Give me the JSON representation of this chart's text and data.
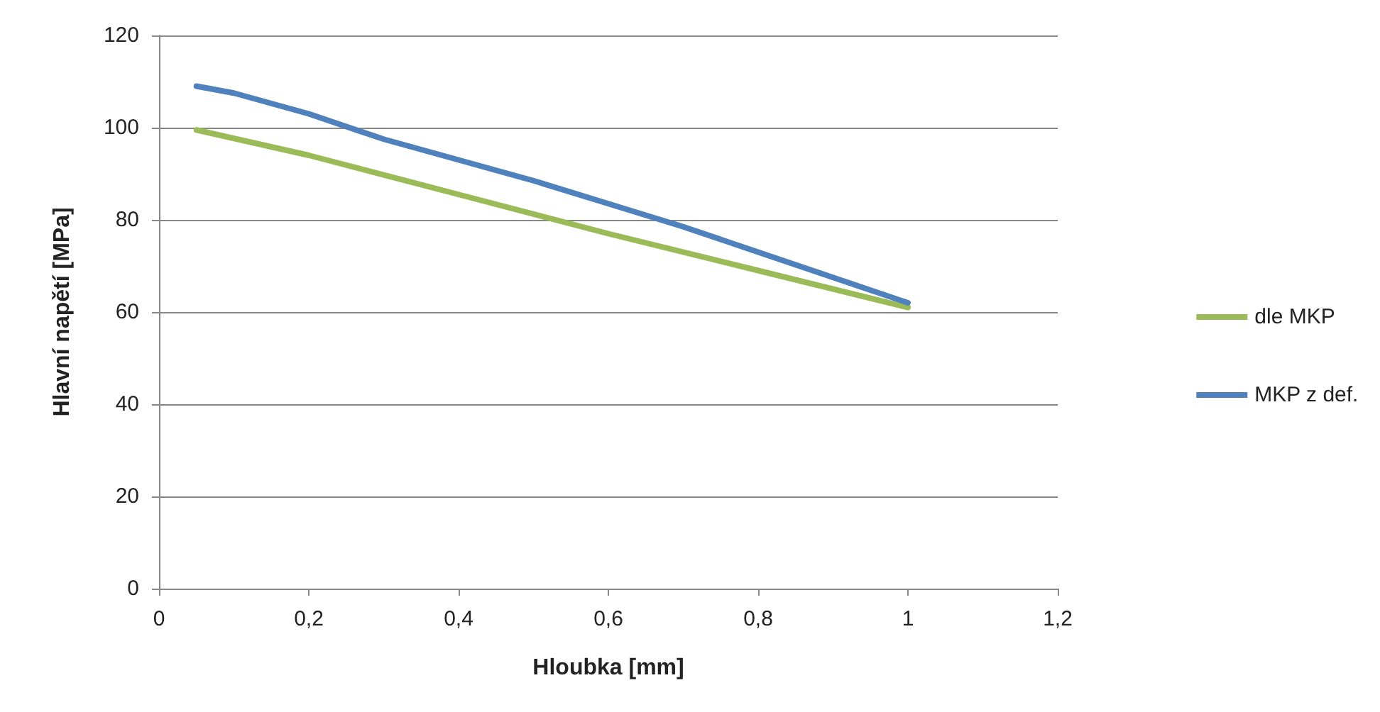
{
  "chart_data": {
    "type": "line",
    "xlabel": "Hloubka [mm]",
    "ylabel": "Hlavní napětí [MPa]",
    "xlim": [
      0,
      1.2
    ],
    "xticks": [
      {
        "value": 0,
        "label": "0"
      },
      {
        "value": 0.2,
        "label": "0,2"
      },
      {
        "value": 0.4,
        "label": "0,4"
      },
      {
        "value": 0.6,
        "label": "0,6"
      },
      {
        "value": 0.8,
        "label": "0,8"
      },
      {
        "value": 1,
        "label": "1"
      },
      {
        "value": 1.2,
        "label": "1,2"
      }
    ],
    "ylim": [
      0,
      120
    ],
    "yticks": [
      0,
      20,
      40,
      60,
      80,
      100,
      120
    ],
    "grid": "y",
    "legend": "right",
    "marker": "none",
    "line_style": "solid",
    "series": [
      {
        "name": "dle MKP",
        "color": "#9bbb59",
        "x": [
          0.05,
          0.2,
          0.4,
          0.6,
          0.8,
          1
        ],
        "values": [
          99.5,
          94,
          85.5,
          77,
          69,
          61
        ]
      },
      {
        "name": "MKP z def.",
        "color": "#4f81bd",
        "x": [
          0.05,
          0.1,
          0.2,
          0.3,
          0.4,
          0.5,
          0.6,
          0.7,
          0.8,
          0.9,
          1
        ],
        "values": [
          109,
          107.5,
          103,
          97.5,
          93,
          88.5,
          83.5,
          78.5,
          73,
          67.5,
          62
        ]
      }
    ]
  }
}
